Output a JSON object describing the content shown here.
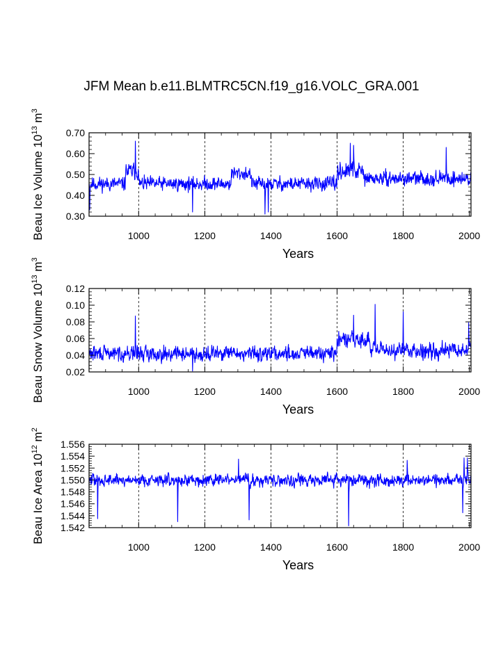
{
  "figure": {
    "title": "JFM Mean b.e11.BLMTRC5CN.f19_g16.VOLC_GRA.001",
    "line_color": "#0000ff"
  },
  "chart_data": [
    {
      "type": "line",
      "name": "ice-volume",
      "ylabel_prefix": "Beau Ice Volume 10",
      "ylabel_exp": "13",
      "ylabel_unit": " m",
      "ylabel_unit_exp": "3",
      "xlabel": "Years",
      "xlim": [
        850,
        2005
      ],
      "ylim": [
        0.3,
        0.7
      ],
      "xticks": [
        1000,
        1200,
        1400,
        1600,
        1800,
        2000
      ],
      "yticks": [
        0.3,
        0.4,
        0.5,
        0.6,
        0.7
      ],
      "ytick_labels": [
        "0.30",
        "0.40",
        "0.50",
        "0.60",
        "0.70"
      ],
      "grid_x": [
        1000,
        1200,
        1400,
        1600,
        1800
      ],
      "series": [
        {
          "name": "Beau Ice Volume",
          "segments": [
            {
              "start": 850,
              "end": 960,
              "mean": 0.455,
              "amp": 0.045
            },
            {
              "start": 960,
              "end": 1000,
              "mean": 0.515,
              "amp": 0.055
            },
            {
              "start": 1000,
              "end": 1280,
              "mean": 0.455,
              "amp": 0.045
            },
            {
              "start": 1280,
              "end": 1340,
              "mean": 0.505,
              "amp": 0.045
            },
            {
              "start": 1340,
              "end": 1600,
              "mean": 0.455,
              "amp": 0.045
            },
            {
              "start": 1600,
              "end": 1680,
              "mean": 0.515,
              "amp": 0.055
            },
            {
              "start": 1680,
              "end": 2005,
              "mean": 0.48,
              "amp": 0.045
            }
          ],
          "peaks": [
            [
              990,
              0.66
            ],
            [
              1640,
              0.65
            ],
            [
              1650,
              0.64
            ],
            [
              1930,
              0.63
            ],
            [
              1163,
              0.32
            ],
            [
              1382,
              0.31
            ],
            [
              1392,
              0.32
            ],
            [
              852,
              0.33
            ]
          ]
        }
      ]
    },
    {
      "type": "line",
      "name": "snow-volume",
      "ylabel_prefix": "Beau Snow Volume 10",
      "ylabel_exp": "13",
      "ylabel_unit": " m",
      "ylabel_unit_exp": "3",
      "xlabel": "Years",
      "xlim": [
        850,
        2005
      ],
      "ylim": [
        0.02,
        0.12
      ],
      "xticks": [
        1000,
        1200,
        1400,
        1600,
        1800,
        2000
      ],
      "yticks": [
        0.02,
        0.04,
        0.06,
        0.08,
        0.1,
        0.12
      ],
      "ytick_labels": [
        "0.02",
        "0.04",
        "0.06",
        "0.08",
        "0.10",
        "0.12"
      ],
      "grid_x": [
        1000,
        1200,
        1400,
        1600,
        1800
      ],
      "series": [
        {
          "name": "Beau Snow Volume",
          "segments": [
            {
              "start": 850,
              "end": 1600,
              "mean": 0.042,
              "amp": 0.012
            },
            {
              "start": 1600,
              "end": 1700,
              "mean": 0.058,
              "amp": 0.014
            },
            {
              "start": 1700,
              "end": 2005,
              "mean": 0.046,
              "amp": 0.013
            }
          ],
          "peaks": [
            [
              1715,
              0.101
            ],
            [
              1800,
              0.092
            ],
            [
              1650,
              0.088
            ],
            [
              990,
              0.087
            ],
            [
              1998,
              0.079
            ],
            [
              1163,
              0.021
            ]
          ]
        }
      ]
    },
    {
      "type": "line",
      "name": "ice-area",
      "ylabel_prefix": "Beau Ice Area 10",
      "ylabel_exp": "12",
      "ylabel_unit": " m",
      "ylabel_unit_exp": "2",
      "xlabel": "Years",
      "xlim": [
        850,
        2005
      ],
      "ylim": [
        1.542,
        1.556
      ],
      "xticks": [
        1000,
        1200,
        1400,
        1600,
        1800,
        2000
      ],
      "yticks": [
        1.542,
        1.544,
        1.546,
        1.548,
        1.55,
        1.552,
        1.554,
        1.556
      ],
      "ytick_labels": [
        "1.542",
        "1.544",
        "1.546",
        "1.548",
        "1.550",
        "1.552",
        "1.554",
        "1.556"
      ],
      "grid_x": [
        1000,
        1200,
        1400,
        1600,
        1800
      ],
      "series": [
        {
          "name": "Beau Ice Area",
          "segments": [
            {
              "start": 850,
              "end": 2005,
              "mean": 1.55,
              "amp": 0.0014
            }
          ],
          "peaks": [
            [
              1635,
              1.5423
            ],
            [
              876,
              1.5435
            ],
            [
              1118,
              1.543
            ],
            [
              1334,
              1.5433
            ],
            [
              1980,
              1.5445
            ],
            [
              1994,
              1.5537
            ],
            [
              1984,
              1.5537
            ],
            [
              1302,
              1.5535
            ],
            [
              1812,
              1.5533
            ]
          ]
        }
      ]
    }
  ]
}
